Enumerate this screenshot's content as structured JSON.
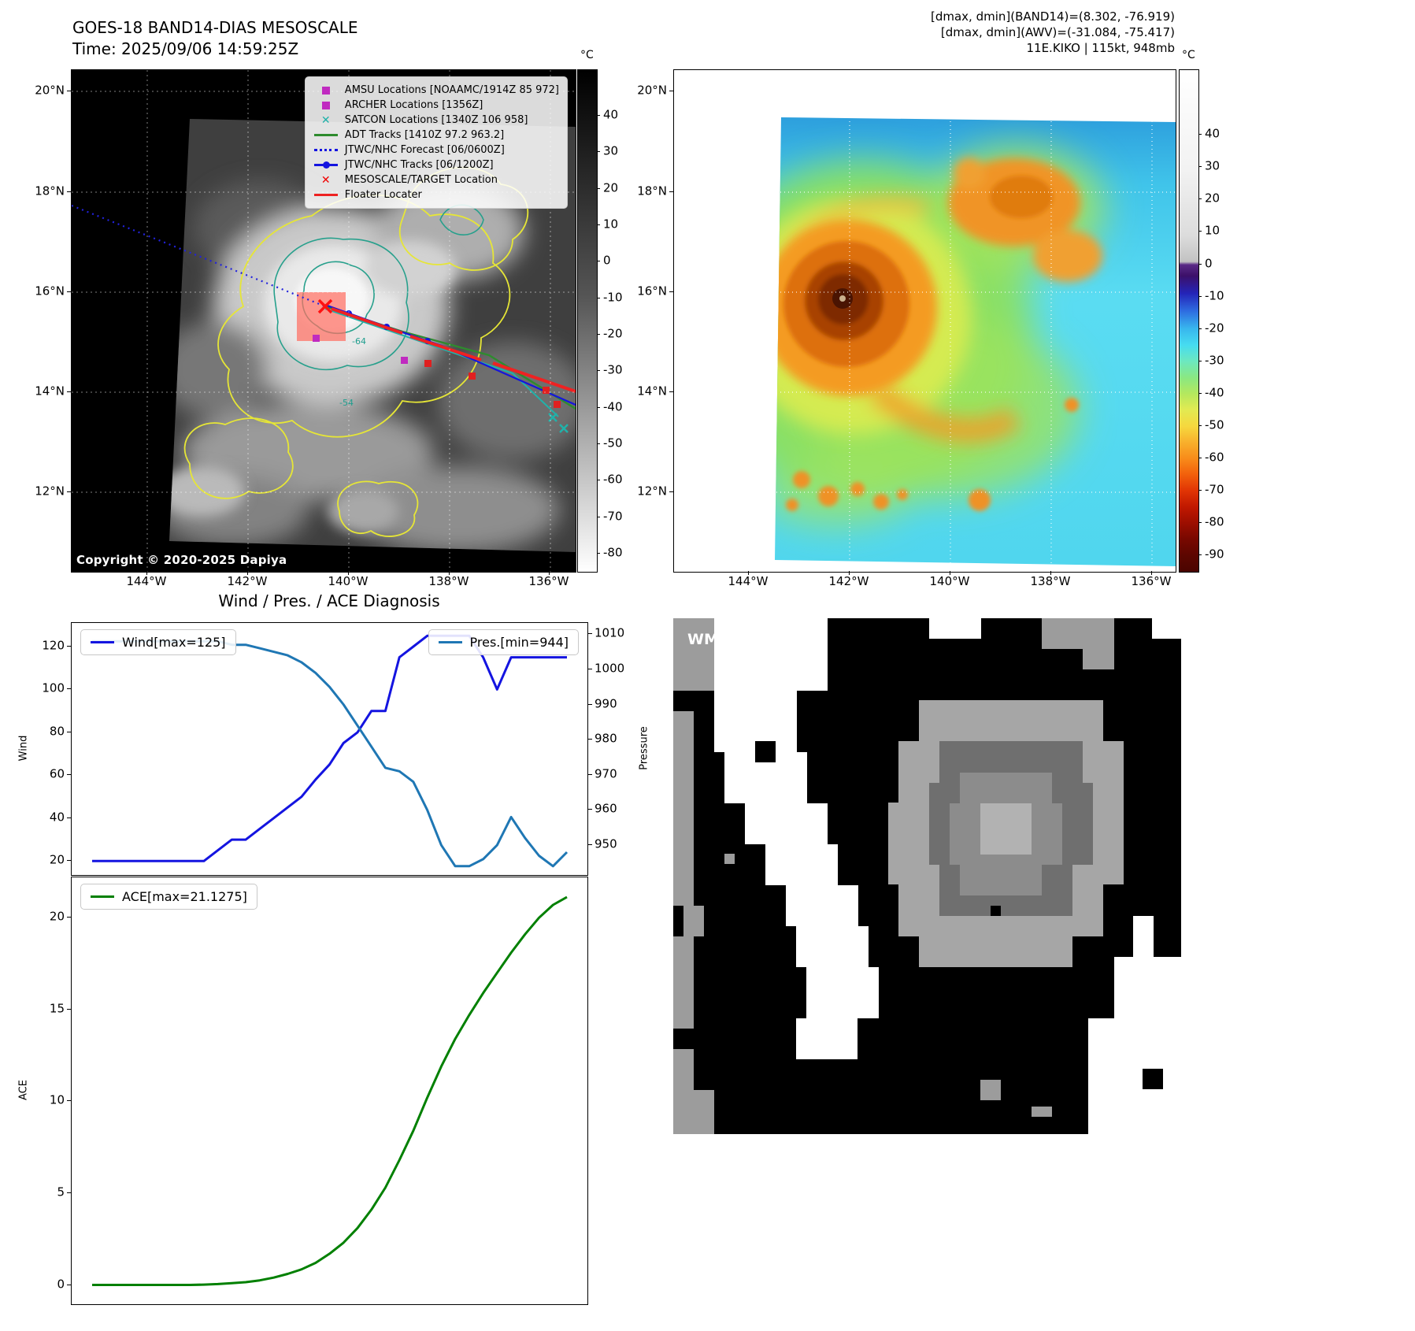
{
  "panel_band14": {
    "title_line1": "GOES-18 BAND14-DIAS MESOSCALE",
    "title_line2": "Time: 2025/09/06 14:59:25Z",
    "copyright": "Copyright © 2020-2025 Dapiya",
    "x_ticks": [
      "144°W",
      "142°W",
      "140°W",
      "138°W",
      "136°W"
    ],
    "y_ticks": [
      "20°N",
      "18°N",
      "16°N",
      "14°N",
      "12°N"
    ],
    "colorbar": {
      "unit": "°C",
      "ticks": [
        40,
        30,
        20,
        10,
        0,
        -10,
        -20,
        -30,
        -40,
        -50,
        -60,
        -70,
        -80
      ]
    },
    "contour_labels": [
      "-64",
      "-54"
    ],
    "legend": [
      {
        "marker": "square",
        "color": "#c02ac0",
        "label": "AMSU Locations [NOAAMC/1914Z 85 972]"
      },
      {
        "marker": "square",
        "color": "#c02ac0",
        "label": "ARCHER Locations [1356Z]"
      },
      {
        "marker": "x",
        "color": "#20b2aa",
        "label": "SATCON Locations [1340Z 106 958]"
      },
      {
        "marker": "line",
        "color": "#2e8b2e",
        "label": "ADT Tracks [1410Z 97.2 963.2]"
      },
      {
        "marker": "dotted-line",
        "color": "#1414e0",
        "label": "JTWC/NHC Forecast [06/0600Z]"
      },
      {
        "marker": "line-dot",
        "color": "#1414e0",
        "label": "JTWC/NHC Tracks [06/1200Z]"
      },
      {
        "marker": "x",
        "color": "#f00000",
        "label": "MESOSCALE/TARGET Location"
      },
      {
        "marker": "line",
        "color": "#ee2222",
        "label": "Floater Locater"
      }
    ]
  },
  "panel_awv": {
    "header_line1": "[dmax, dmin](BAND14)=(8.302, -76.919)",
    "header_line2": "[dmax, dmin](AWV)=(-31.084, -75.417)",
    "header_line3": "11E.KIKO | 115kt, 948mb",
    "x_ticks": [
      "144°W",
      "142°W",
      "140°W",
      "138°W",
      "136°W"
    ],
    "y_ticks": [
      "20°N",
      "18°N",
      "16°N",
      "14°N",
      "12°N"
    ],
    "colorbar": {
      "unit": "°C",
      "ticks": [
        40,
        30,
        20,
        10,
        0,
        -10,
        -20,
        -30,
        -40,
        -50,
        -60,
        -70,
        -80,
        -90
      ]
    }
  },
  "diagnosis": {
    "title": "Wind / Pres. / ACE Diagnosis",
    "wind_legend": "Wind[max=125]",
    "pres_legend": "Pres.[min=944]",
    "ace_legend": "ACE[max=21.1275]",
    "wind_axis_label": "Wind",
    "pressure_axis_label": "Pressure",
    "ace_axis_label": "ACE"
  },
  "wmg": {
    "count_label": "WMG Count: 0"
  },
  "chart_data": [
    {
      "id": "wind_pressure",
      "type": "line",
      "title": "Wind / Pres. / ACE Diagnosis",
      "x_tick_labels": [],
      "grid": false,
      "left_axis": {
        "label": "Wind",
        "ticks": [
          20,
          40,
          60,
          80,
          100,
          120
        ],
        "range": [
          13.5,
          131
        ]
      },
      "right_axis": {
        "label": "Pressure",
        "ticks": [
          950,
          960,
          970,
          980,
          990,
          1000,
          1010
        ],
        "range": [
          941.5,
          1013.2
        ]
      },
      "series": [
        {
          "name": "Wind[max=125]",
          "axis": "left",
          "color": "#1414e0",
          "max": 125,
          "values": [
            20,
            20,
            20,
            20,
            20,
            20,
            20,
            20,
            20,
            25,
            30,
            30,
            35,
            40,
            45,
            50,
            58,
            65,
            75,
            80,
            90,
            90,
            115,
            120,
            125,
            125,
            125,
            125,
            115,
            100,
            115,
            115,
            115,
            115,
            115
          ]
        },
        {
          "name": "Pres.[min=944]",
          "axis": "right",
          "color": "#1f77b4",
          "min": 944,
          "values": [
            1008,
            1008,
            1008,
            1008,
            1008,
            1008,
            1008,
            1008,
            1008,
            1008,
            1007,
            1007,
            1006,
            1005,
            1004,
            1002,
            999,
            995,
            990,
            984,
            978,
            972,
            971,
            968,
            960,
            950,
            944,
            944,
            946,
            950,
            958,
            952,
            947,
            944,
            948
          ]
        }
      ],
      "legend_position": "upper-left and upper-right"
    },
    {
      "id": "ace",
      "type": "line",
      "x_tick_labels": [],
      "grid": false,
      "left_axis": {
        "label": "ACE",
        "ticks": [
          0,
          5,
          10,
          15,
          20
        ],
        "range": [
          -1.05,
          22.2
        ]
      },
      "series": [
        {
          "name": "ACE[max=21.1275]",
          "color": "#008000",
          "max": 21.1275,
          "values": [
            0,
            0,
            0,
            0,
            0,
            0,
            0,
            0,
            0.02,
            0.05,
            0.1,
            0.15,
            0.25,
            0.4,
            0.6,
            0.85,
            1.2,
            1.7,
            2.3,
            3.1,
            4.1,
            5.3,
            6.8,
            8.4,
            10.2,
            11.9,
            13.4,
            14.7,
            15.9,
            17.0,
            18.1,
            19.1,
            20.0,
            20.7,
            21.1275
          ]
        }
      ],
      "legend_position": "upper-left"
    },
    {
      "id": "band14_map",
      "type": "heatmap",
      "description": "GOES-18 Band-14 IR grayscale satellite image with storm track and fix-location overlays",
      "x_ticks": [
        "144°W",
        "142°W",
        "140°W",
        "138°W",
        "136°W"
      ],
      "y_ticks": [
        "20°N",
        "18°N",
        "16°N",
        "14°N",
        "12°N"
      ],
      "colorbar_ticks": [
        40,
        30,
        20,
        10,
        0,
        -10,
        -20,
        -30,
        -40,
        -50,
        -60,
        -70,
        -80
      ],
      "colorbar_unit": "°C"
    },
    {
      "id": "awv_map",
      "type": "heatmap",
      "description": "Color-enhanced IR image of hurricane 11E.KIKO with eye near 15.6N 140.5W",
      "x_ticks": [
        "144°W",
        "142°W",
        "140°W",
        "138°W",
        "136°W"
      ],
      "y_ticks": [
        "20°N",
        "18°N",
        "16°N",
        "14°N",
        "12°N"
      ],
      "colorbar_ticks": [
        40,
        30,
        20,
        10,
        0,
        -10,
        -20,
        -30,
        -40,
        -50,
        -60,
        -70,
        -80,
        -90
      ],
      "colorbar_unit": "°C"
    }
  ]
}
